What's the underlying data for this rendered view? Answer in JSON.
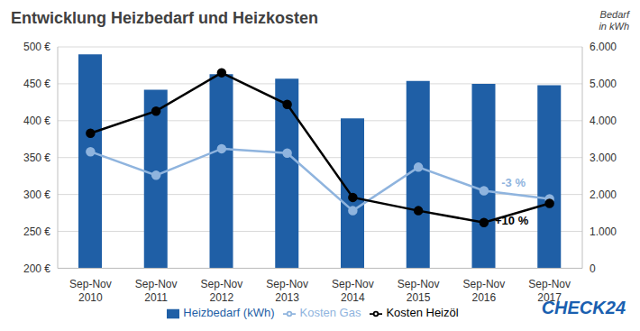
{
  "chart_data": {
    "type": "bar",
    "title": "Entwicklung Heizbedarf und Heizkosten",
    "y2_label": "Bedarf in kWh",
    "brand": "CHECK24",
    "categories": [
      "Sep-Nov 2010",
      "Sep-Nov 2011",
      "Sep-Nov 2012",
      "Sep-Nov 2013",
      "Sep-Nov 2014",
      "Sep-Nov 2015",
      "Sep-Nov 2016",
      "Sep-Nov 2017"
    ],
    "series": [
      {
        "name": "Heizbedarf (kWh)",
        "type": "bar",
        "axis": "y2",
        "color": "#1f5fa6",
        "values": [
          5800,
          4840,
          5260,
          5140,
          4060,
          5080,
          5000,
          4960
        ]
      },
      {
        "name": "Kosten Gas",
        "type": "line",
        "color": "#8fb4de",
        "marker": "circle",
        "values": [
          358,
          326,
          362,
          356,
          278,
          337,
          305,
          294
        ]
      },
      {
        "name": "Kosten Heizöl",
        "type": "line",
        "color": "#000000",
        "marker": "circle",
        "values": [
          383,
          413,
          465,
          422,
          296,
          278,
          262,
          288
        ]
      }
    ],
    "ylim": [
      200,
      500
    ],
    "yticks": [
      {
        "value": 200,
        "label": "200 €"
      },
      {
        "value": 250,
        "label": "250 €"
      },
      {
        "value": 300,
        "label": "300 €"
      },
      {
        "value": 350,
        "label": "350 €"
      },
      {
        "value": 400,
        "label": "400 €"
      },
      {
        "value": 450,
        "label": "450 €"
      },
      {
        "value": 500,
        "label": "500 €"
      }
    ],
    "y2lim": [
      0,
      6000
    ],
    "y2ticks": [
      0,
      {
        "value": 1000,
        "label": "1.000"
      },
      {
        "value": 2000,
        "label": "2.000"
      },
      {
        "value": 3000,
        "label": "3.000"
      },
      {
        "value": 4000,
        "label": "4.000"
      },
      {
        "value": 5000,
        "label": "5.000"
      },
      {
        "value": 6000,
        "label": "6.000"
      }
    ],
    "annotations": [
      {
        "text": "-3 %",
        "series": "Kosten Gas",
        "category": "Sep-Nov 2017",
        "color": "#8fb4de"
      },
      {
        "text": "+10 %",
        "series": "Kosten Heizöl",
        "category": "Sep-Nov 2017",
        "color": "#000000"
      }
    ],
    "grid": true,
    "legend": "bottom"
  }
}
